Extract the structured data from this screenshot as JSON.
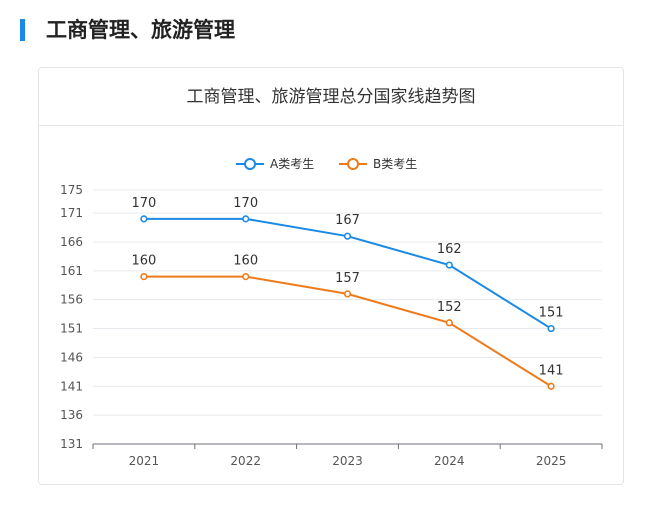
{
  "section": {
    "title": "工商管理、旅游管理"
  },
  "chart_data": {
    "type": "line",
    "title": "工商管理、旅游管理总分国家线趋势图",
    "categories": [
      "2021",
      "2022",
      "2023",
      "2024",
      "2025"
    ],
    "yticks": [
      131,
      136,
      141,
      146,
      151,
      156,
      161,
      166,
      171,
      175
    ],
    "ylim": [
      131,
      175
    ],
    "xlabel": "",
    "ylabel": "",
    "legend_position": "top-center",
    "grid": true,
    "series": [
      {
        "name": "A类考生",
        "color": "#1a8ae6",
        "values": [
          170,
          170,
          167,
          162,
          151
        ]
      },
      {
        "name": "B类考生",
        "color": "#ef7a1a",
        "values": [
          160,
          160,
          157,
          152,
          141
        ]
      }
    ]
  }
}
